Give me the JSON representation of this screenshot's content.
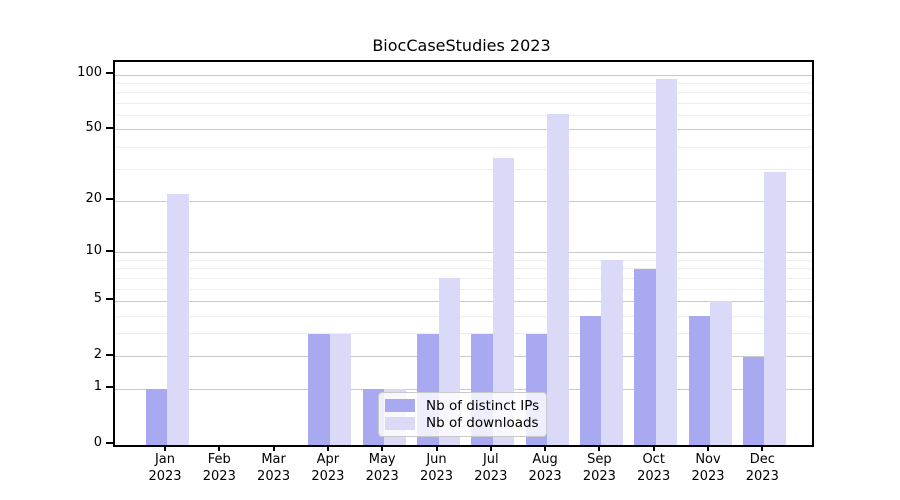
{
  "figure": {
    "title": "BiocCaseStudies 2023"
  },
  "chart_data": {
    "type": "bar",
    "title": "BiocCaseStudies 2023",
    "year_label": "2023",
    "categories": [
      "Jan",
      "Feb",
      "Mar",
      "Apr",
      "May",
      "Jun",
      "Jul",
      "Aug",
      "Sep",
      "Oct",
      "Nov",
      "Dec"
    ],
    "series": [
      {
        "name": "Nb of distinct IPs",
        "color": "#a9a9f1",
        "values": [
          1,
          0,
          0,
          3,
          1,
          3,
          3,
          3,
          4,
          8,
          4,
          2
        ]
      },
      {
        "name": "Nb of downloads",
        "color": "#dadaf8",
        "values": [
          22,
          0,
          0,
          3,
          1,
          7,
          35,
          61,
          9,
          95,
          5,
          29
        ]
      }
    ],
    "yscale": "log1p",
    "yticks": [
      0,
      1,
      2,
      5,
      10,
      20,
      50,
      100
    ],
    "minor_gridlines": [
      3,
      4,
      6,
      7,
      8,
      9,
      30,
      40,
      60,
      70,
      80,
      90
    ],
    "ylim": [
      0,
      118
    ],
    "grid": true,
    "legend_position": "lower center-left inside plot",
    "axis_color": "#000000",
    "major_grid_color": "#c9c9c9",
    "minor_grid_color": "#ededed"
  }
}
